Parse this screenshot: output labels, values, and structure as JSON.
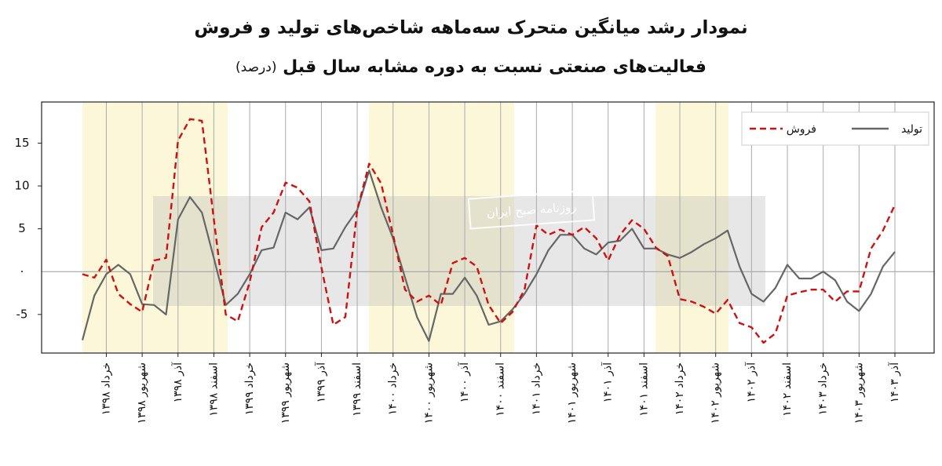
{
  "chart_data": {
    "type": "line",
    "title": "نمودار رشد میانگین متحرک سه‌ماهه شاخص‌های تولید و فروش",
    "subtitle": "فعالیت‌های صنعتی نسبت به دوره مشابه سال قبل",
    "unit": "(درصد)",
    "watermark": "روزنامه صبح ایران",
    "categories": [
      null,
      null,
      "خرداد ۱۳۹۸",
      null,
      null,
      "شهریور ۱۳۹۸",
      null,
      null,
      "آذر ۱۳۹۸",
      null,
      null,
      "اسفند ۱۳۹۸",
      null,
      null,
      "خرداد ۱۳۹۹",
      null,
      null,
      "شهریور ۱۳۹۹",
      null,
      null,
      "آذر ۱۳۹۹",
      null,
      null,
      "اسفند ۱۳۹۹",
      null,
      null,
      "خرداد ۱۴۰۰",
      null,
      null,
      "شهریور ۱۴۰۰",
      null,
      null,
      "آذر ۱۴۰۰",
      null,
      null,
      "اسفند ۱۴۰۰",
      null,
      null,
      "خرداد ۱۴۰۱",
      null,
      null,
      "شهریور ۱۴۰۱",
      null,
      null,
      "آذر ۱۴۰۱",
      null,
      null,
      "اسفند ۱۴۰۱",
      null,
      null,
      "خرداد ۱۴۰۲",
      null,
      null,
      "شهریور ۱۴۰۲",
      null,
      null,
      "آذر ۱۴۰۲",
      null,
      null,
      "اسفند ۱۴۰۲",
      null,
      null,
      "خرداد ۱۴۰۳",
      null,
      null,
      "شهریور ۱۴۰۳",
      null,
      null,
      "آذر ۱۴۰۳"
    ],
    "series": [
      {
        "name": "تولید",
        "color": "#666666",
        "dash": false,
        "values": [
          -8.0,
          -2.8,
          -0.3,
          0.8,
          -0.3,
          -3.8,
          -3.9,
          -5.0,
          6.1,
          8.7,
          6.9,
          1.6,
          -3.9,
          -2.6,
          -0.3,
          2.5,
          2.8,
          6.9,
          6.1,
          7.5,
          2.5,
          2.7,
          5.2,
          7.2,
          11.8,
          7.5,
          3.9,
          -0.7,
          -5.3,
          -8.1,
          -2.6,
          -2.6,
          -0.7,
          -2.8,
          -6.2,
          -5.8,
          -4.4,
          -2.6,
          -0.3,
          2.5,
          4.3,
          4.3,
          2.7,
          2.0,
          3.4,
          3.6,
          5.0,
          2.7,
          2.7,
          2.0,
          1.6,
          2.3,
          3.2,
          3.9,
          4.8,
          0.6,
          -2.6,
          -3.5,
          -1.9,
          0.8,
          -0.8,
          -0.8,
          0,
          -1.0,
          -3.5,
          -4.6,
          -2.6,
          0.6,
          2.3
        ]
      },
      {
        "name": "فروش",
        "color": "#cc1111",
        "dash": true,
        "values": [
          -0.3,
          -0.7,
          1.4,
          -2.6,
          -3.8,
          -4.7,
          1.3,
          1.6,
          15.3,
          17.8,
          17.6,
          6.1,
          -5.0,
          -5.8,
          -1.2,
          5.2,
          6.9,
          10.4,
          9.8,
          8.2,
          0.5,
          -6.2,
          -5.3,
          7.2,
          12.6,
          10.3,
          4.3,
          -2.1,
          -3.5,
          -2.8,
          -3.9,
          1.0,
          1.6,
          0.6,
          -3.9,
          -6.0,
          -4.7,
          -2.1,
          5.4,
          4.3,
          4.9,
          4.3,
          5.2,
          3.9,
          1.3,
          4.3,
          6.0,
          5.0,
          2.8,
          1.8,
          -3.2,
          -3.5,
          -4.1,
          -4.9,
          -3.3,
          -6.0,
          -6.5,
          -8.3,
          -7.2,
          -2.8,
          -2.4,
          -2.1,
          -2.1,
          -3.5,
          -2.3,
          -2.3,
          2.7,
          4.8,
          7.8
        ]
      }
    ],
    "ylim": [
      -9.5,
      19.8
    ],
    "yticks": [
      -5,
      {
        "value": 0,
        "label": "۰"
      },
      5,
      10,
      15
    ],
    "grid": true,
    "legend": "top-right"
  }
}
